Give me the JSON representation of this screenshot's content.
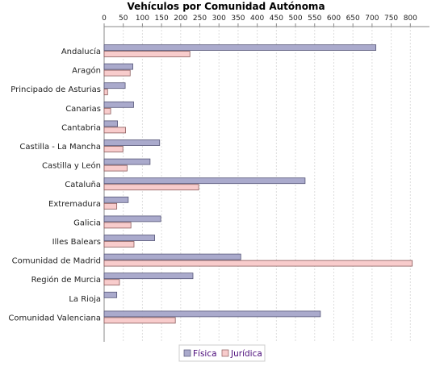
{
  "chart_data": {
    "type": "bar",
    "orientation": "horizontal",
    "title": "Vehículos por Comunidad Autónoma",
    "xlabel": "",
    "ylabel": "",
    "xlim": [
      0,
      850
    ],
    "x_ticks": [
      0,
      50,
      100,
      150,
      200,
      250,
      300,
      350,
      400,
      450,
      500,
      550,
      600,
      650,
      700,
      750,
      800
    ],
    "x_axis_position": "top",
    "grid": "vertical dashed",
    "legend_position": "bottom",
    "categories": [
      "Andalucía",
      "Aragón",
      "Principado de Asturias",
      "Canarias",
      "Cantabria",
      "Castilla - La Mancha",
      "Castilla y León",
      "Cataluña",
      "Extremadura",
      "Galicia",
      "Illes Balears",
      "Comunidad de Madrid",
      "Región de Murcia",
      "La Rioja",
      "Comunidad Valenciana"
    ],
    "series": [
      {
        "name": "Física",
        "color": "#aaaacc",
        "stroke": "#555577",
        "values": [
          710,
          75,
          55,
          77,
          35,
          145,
          120,
          525,
          63,
          148,
          132,
          357,
          232,
          33,
          565
        ]
      },
      {
        "name": "Jurídica",
        "color": "#f8cccc",
        "stroke": "#8a5a5a",
        "values": [
          224,
          68,
          9,
          17,
          56,
          49,
          60,
          247,
          33,
          70,
          78,
          805,
          40,
          0,
          186
        ]
      }
    ]
  }
}
